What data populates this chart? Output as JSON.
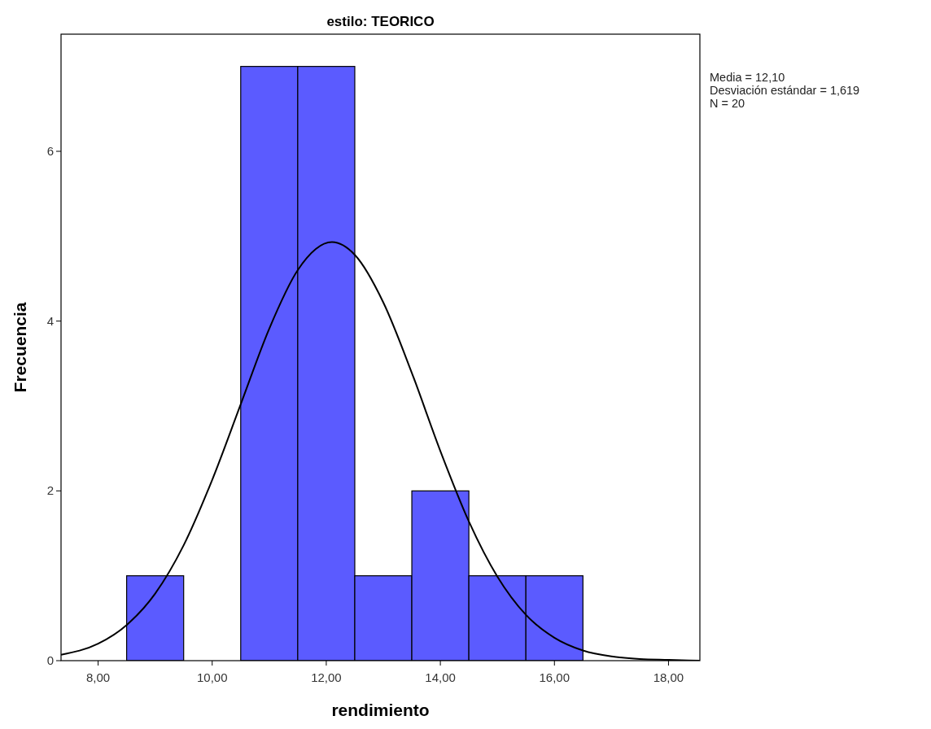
{
  "chart_data": {
    "type": "histogram",
    "title": "estilo: TEORICO",
    "xlabel": "rendimiento",
    "ylabel": "Frecuencia",
    "bins": [
      8.5,
      9.5,
      10.5,
      11.5,
      12.5,
      13.5,
      14.5,
      15.5,
      16.5
    ],
    "values": [
      1,
      0,
      7,
      7,
      1,
      2,
      1,
      1
    ],
    "color": "#5b5bff",
    "series": [
      {
        "type": "line",
        "color": "#000000",
        "x": [
          7.35,
          8,
          8.5,
          9,
          9.5,
          10,
          10.5,
          11,
          11.5,
          12.1,
          12.5,
          13,
          13.5,
          14,
          14.5,
          15,
          15.5,
          16,
          16.5,
          17,
          17.5,
          18,
          18.55
        ],
        "values": [
          0.07,
          0.2,
          0.42,
          0.79,
          1.36,
          2.13,
          3.02,
          3.91,
          4.6,
          4.93,
          4.78,
          4.22,
          3.39,
          2.47,
          1.64,
          0.99,
          0.54,
          0.27,
          0.12,
          0.05,
          0.02,
          0.01,
          0
        ]
      }
    ],
    "xlim": [
      7.35,
      18.55
    ],
    "ylim": [
      0,
      7.38
    ],
    "xticks": [
      {
        "value": 8,
        "label": "8,00"
      },
      {
        "value": 10,
        "label": "10,00"
      },
      {
        "value": 12,
        "label": "12,00"
      },
      {
        "value": 14,
        "label": "14,00"
      },
      {
        "value": 16,
        "label": "16,00"
      },
      {
        "value": 18,
        "label": "18,00"
      }
    ],
    "yticks": [
      0,
      2,
      4,
      6
    ],
    "grid": false,
    "annotations": [
      "Media = 12,10",
      "Desviación estándar = 1,619",
      "N = 20"
    ]
  }
}
